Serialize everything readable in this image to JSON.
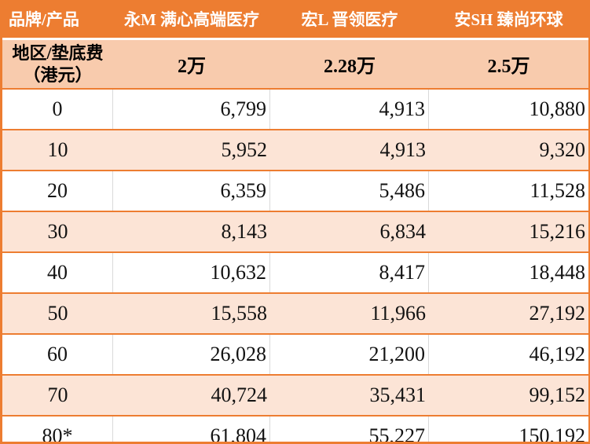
{
  "table": {
    "corner_label": "品牌/产品",
    "products": [
      "永M 满心高端医疗",
      "宏L 晋领医疗",
      "安SH 臻尚环球"
    ],
    "row_header": {
      "line1": "地区/垫底费",
      "line2": "（港元）"
    },
    "deductibles": [
      "2万",
      "2.28万",
      "2.5万"
    ],
    "rows": [
      {
        "age": "0",
        "values": [
          "6,799",
          "4,913",
          "10,880"
        ]
      },
      {
        "age": "10",
        "values": [
          "5,952",
          "4,913",
          "9,320"
        ]
      },
      {
        "age": "20",
        "values": [
          "6,359",
          "5,486",
          "11,528"
        ]
      },
      {
        "age": "30",
        "values": [
          "8,143",
          "6,834",
          "15,216"
        ]
      },
      {
        "age": "40",
        "values": [
          "10,632",
          "8,417",
          "18,448"
        ]
      },
      {
        "age": "50",
        "values": [
          "15,558",
          "11,966",
          "27,192"
        ]
      },
      {
        "age": "60",
        "values": [
          "26,028",
          "21,200",
          "46,192"
        ]
      },
      {
        "age": "70",
        "values": [
          "40,724",
          "35,431",
          "99,152"
        ]
      },
      {
        "age": "80*",
        "values": [
          "61,804",
          "55,227",
          "150,192"
        ]
      }
    ]
  },
  "colors": {
    "header_orange": "#ED7D31",
    "header_peach": "#F8CBAD",
    "row_peach": "#FCE4D6",
    "divider_gray": "#D9D9D9",
    "header_text": "#FFFFFF",
    "body_text": "#121212"
  }
}
